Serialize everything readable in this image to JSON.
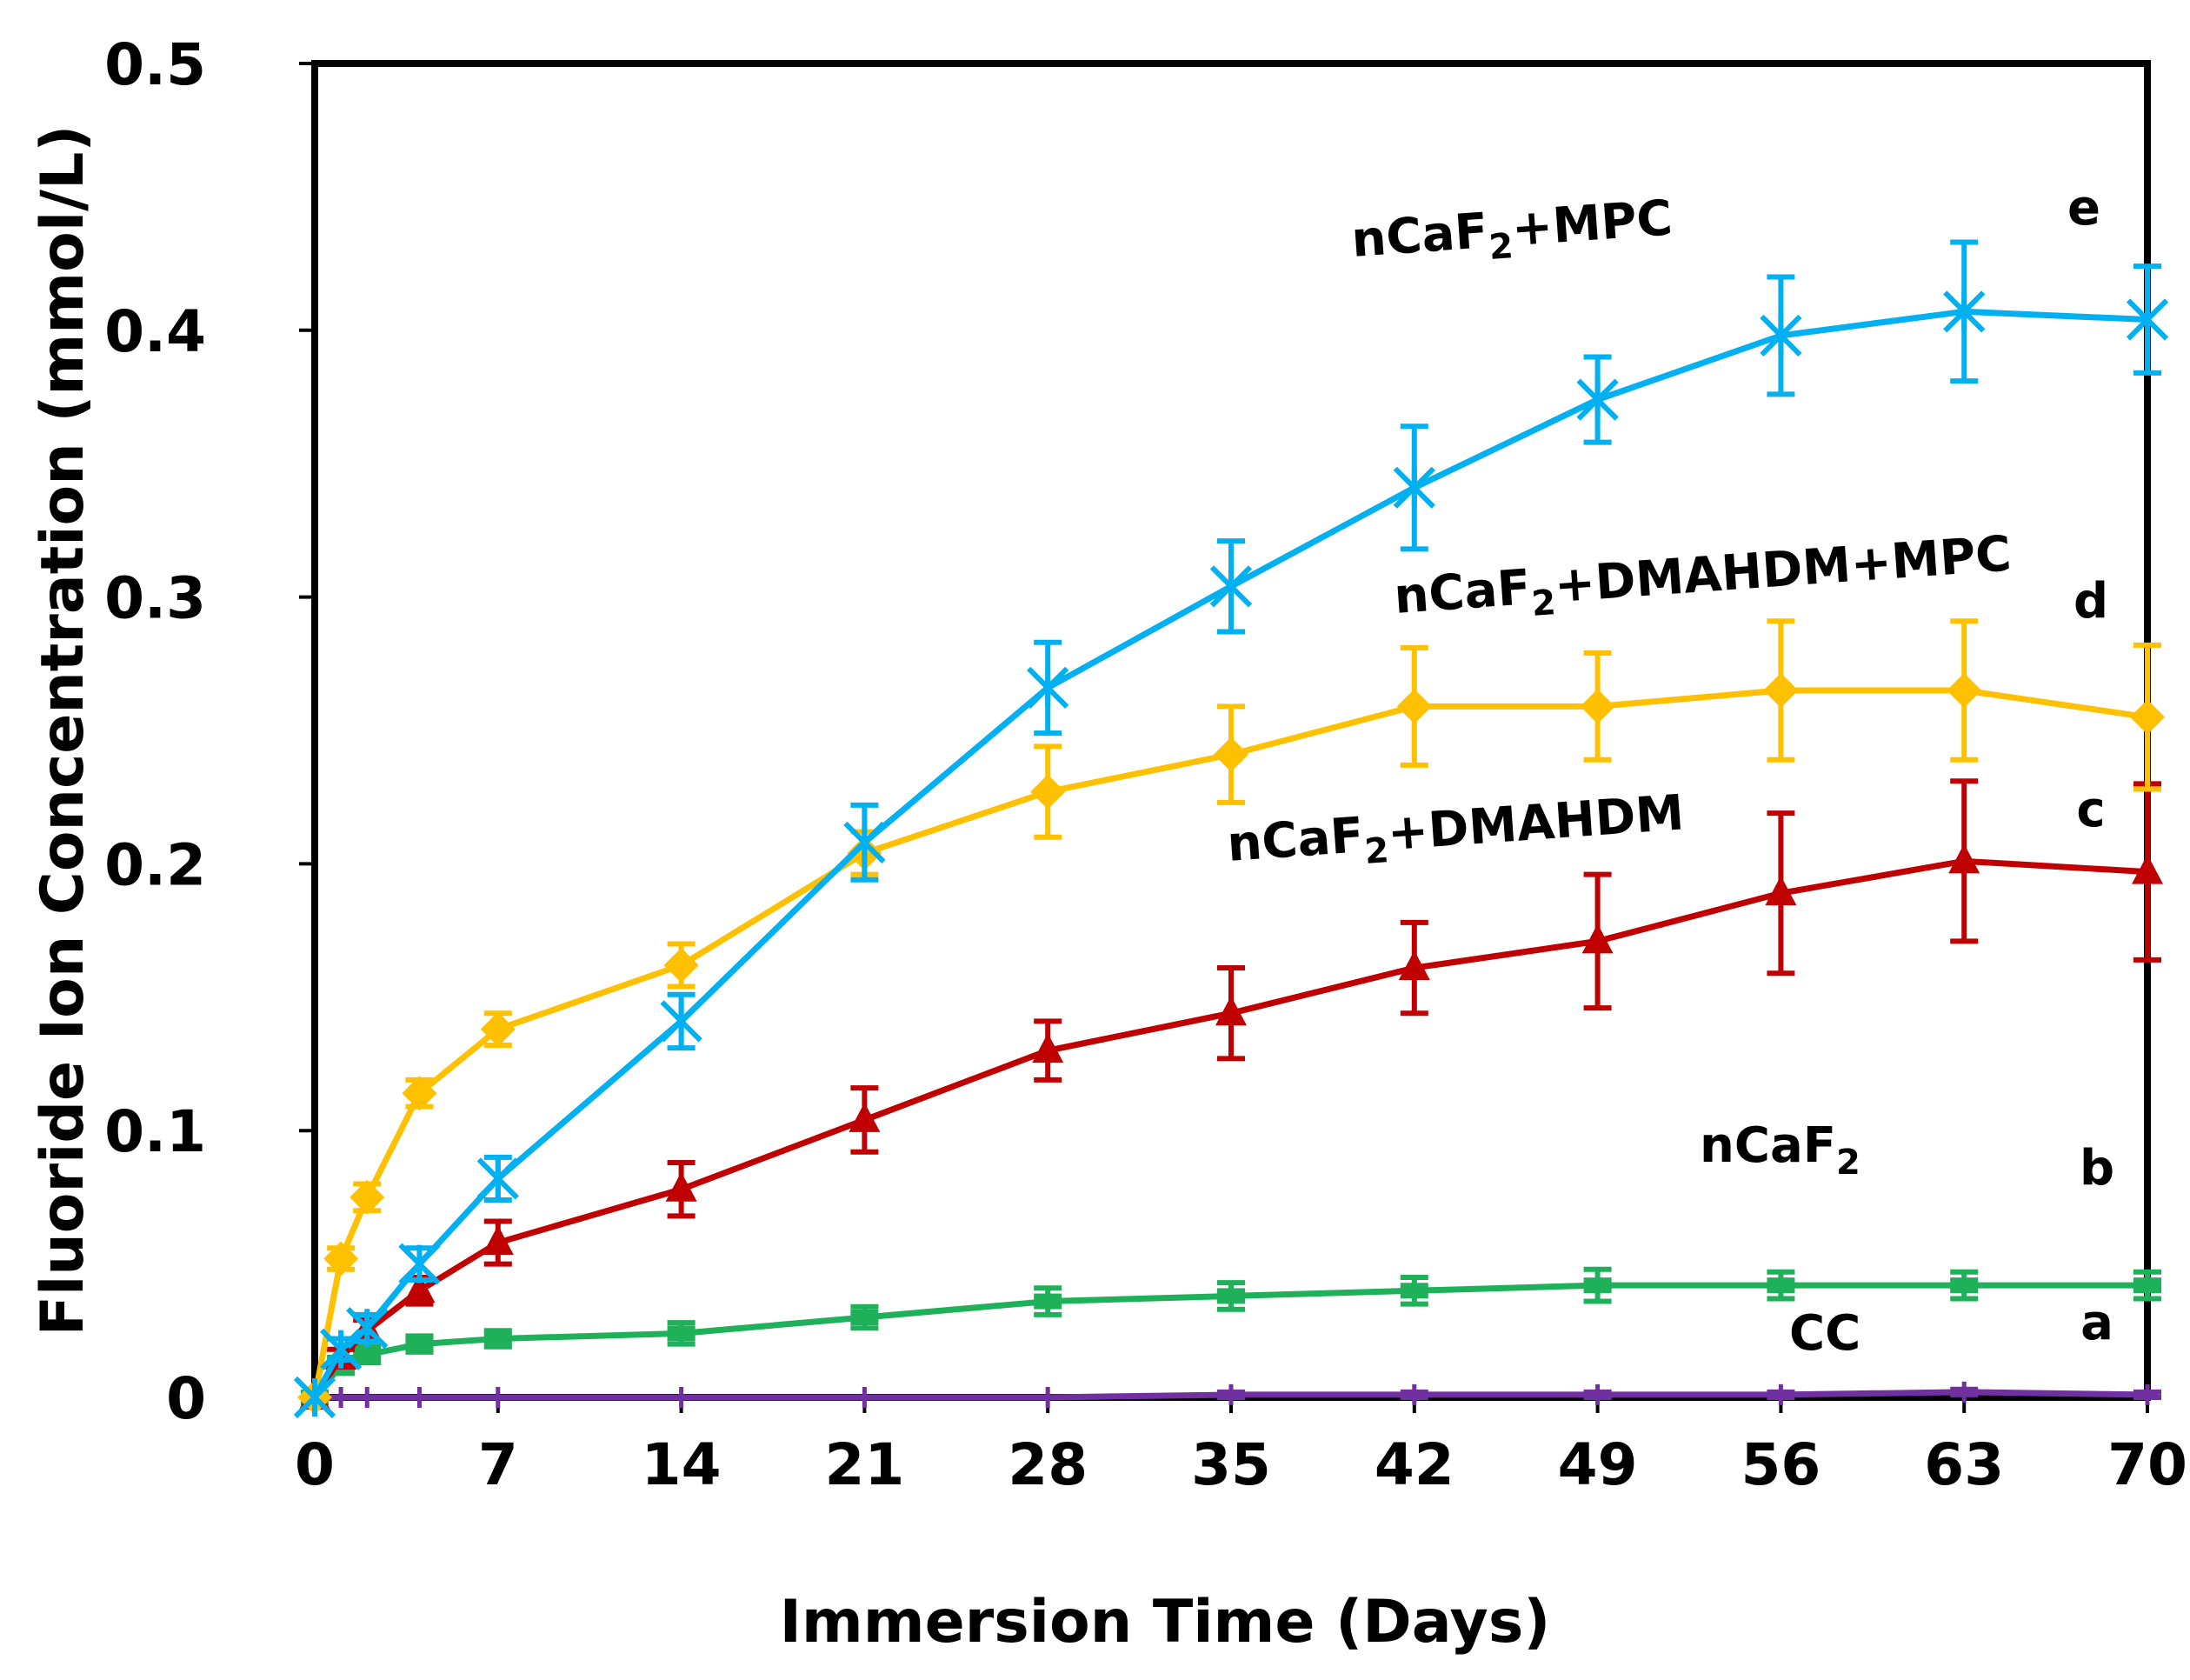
{
  "chart_data": {
    "type": "line",
    "title": "",
    "xlabel": "Immersion Time (Days)",
    "ylabel": "Fluoride Ion Concentration (mmol/L)",
    "xlim": [
      0,
      70
    ],
    "ylim": [
      0,
      0.5
    ],
    "x_ticks": [
      0,
      7,
      14,
      21,
      28,
      35,
      42,
      49,
      56,
      63,
      70
    ],
    "y_ticks": [
      0,
      0.1,
      0.2,
      0.3,
      0.4,
      0.5
    ],
    "grid": false,
    "series": [
      {
        "name": "CC",
        "letter": "a",
        "color": "#7030a0",
        "marker": "plus",
        "x": [
          0,
          1,
          2,
          4,
          7,
          14,
          21,
          28,
          35,
          42,
          49,
          56,
          63,
          70
        ],
        "y": [
          0,
          0,
          0,
          0,
          0,
          0,
          0,
          0,
          0.001,
          0.001,
          0.001,
          0.001,
          0.002,
          0.001
        ],
        "err": [
          0,
          0,
          0,
          0,
          0,
          0,
          0,
          0,
          0.001,
          0.001,
          0.001,
          0.001,
          0.001,
          0.001
        ]
      },
      {
        "name": "nCaF2",
        "letter": "b",
        "color": "#1fb05a",
        "marker": "dash",
        "x": [
          0,
          1,
          2,
          4,
          7,
          14,
          21,
          28,
          35,
          42,
          49,
          56,
          63,
          70
        ],
        "y": [
          0,
          0.012,
          0.016,
          0.02,
          0.022,
          0.024,
          0.03,
          0.036,
          0.038,
          0.04,
          0.042,
          0.042,
          0.042,
          0.042
        ],
        "err": [
          0,
          0.003,
          0.003,
          0.003,
          0.003,
          0.004,
          0.004,
          0.005,
          0.005,
          0.005,
          0.006,
          0.005,
          0.005,
          0.005
        ]
      },
      {
        "name": "nCaF2+DMAHDM",
        "letter": "c",
        "color": "#c00000",
        "marker": "triangle",
        "x": [
          0,
          1,
          2,
          4,
          7,
          14,
          21,
          28,
          35,
          42,
          49,
          56,
          63,
          70
        ],
        "y": [
          0,
          0.015,
          0.025,
          0.04,
          0.058,
          0.078,
          0.104,
          0.13,
          0.144,
          0.161,
          0.171,
          0.189,
          0.201,
          0.197
        ],
        "err": [
          0,
          0.003,
          0.004,
          0.005,
          0.008,
          0.01,
          0.012,
          0.011,
          0.017,
          0.017,
          0.025,
          0.03,
          0.03,
          0.033
        ]
      },
      {
        "name": "nCaF2+DMAHDM+MPC",
        "letter": "d",
        "color": "#ffc000",
        "marker": "diamond",
        "x": [
          0,
          1,
          2,
          4,
          7,
          14,
          21,
          28,
          35,
          42,
          49,
          56,
          63,
          70
        ],
        "y": [
          0,
          0.052,
          0.075,
          0.114,
          0.138,
          0.162,
          0.204,
          0.227,
          0.241,
          0.259,
          0.259,
          0.265,
          0.265,
          0.255
        ],
        "err": [
          0,
          0.004,
          0.005,
          0.005,
          0.006,
          0.008,
          0.008,
          0.017,
          0.018,
          0.022,
          0.02,
          0.026,
          0.026,
          0.027
        ]
      },
      {
        "name": "nCaF2+MPC",
        "letter": "e",
        "color": "#00b0f0",
        "marker": "star",
        "x": [
          0,
          1,
          2,
          4,
          7,
          14,
          21,
          28,
          35,
          42,
          49,
          56,
          63,
          70
        ],
        "y": [
          0,
          0.018,
          0.026,
          0.05,
          0.082,
          0.141,
          0.208,
          0.266,
          0.304,
          0.341,
          0.374,
          0.398,
          0.407,
          0.404
        ],
        "err": [
          0,
          0.004,
          0.005,
          0.006,
          0.008,
          0.01,
          0.014,
          0.017,
          0.017,
          0.023,
          0.016,
          0.022,
          0.026,
          0.02
        ]
      }
    ]
  },
  "series_labels": {
    "e": {
      "base": "nCaF",
      "sub": "2",
      "rest": "+MPC"
    },
    "d": {
      "base": "nCaF",
      "sub": "2",
      "rest": "+DMAHDM+MPC"
    },
    "c": {
      "base": "nCaF",
      "sub": "2",
      "rest": "+DMAHDM"
    },
    "b": {
      "base": "nCaF",
      "sub": "2",
      "rest": ""
    },
    "a": {
      "base": "CC",
      "sub": "",
      "rest": ""
    }
  }
}
